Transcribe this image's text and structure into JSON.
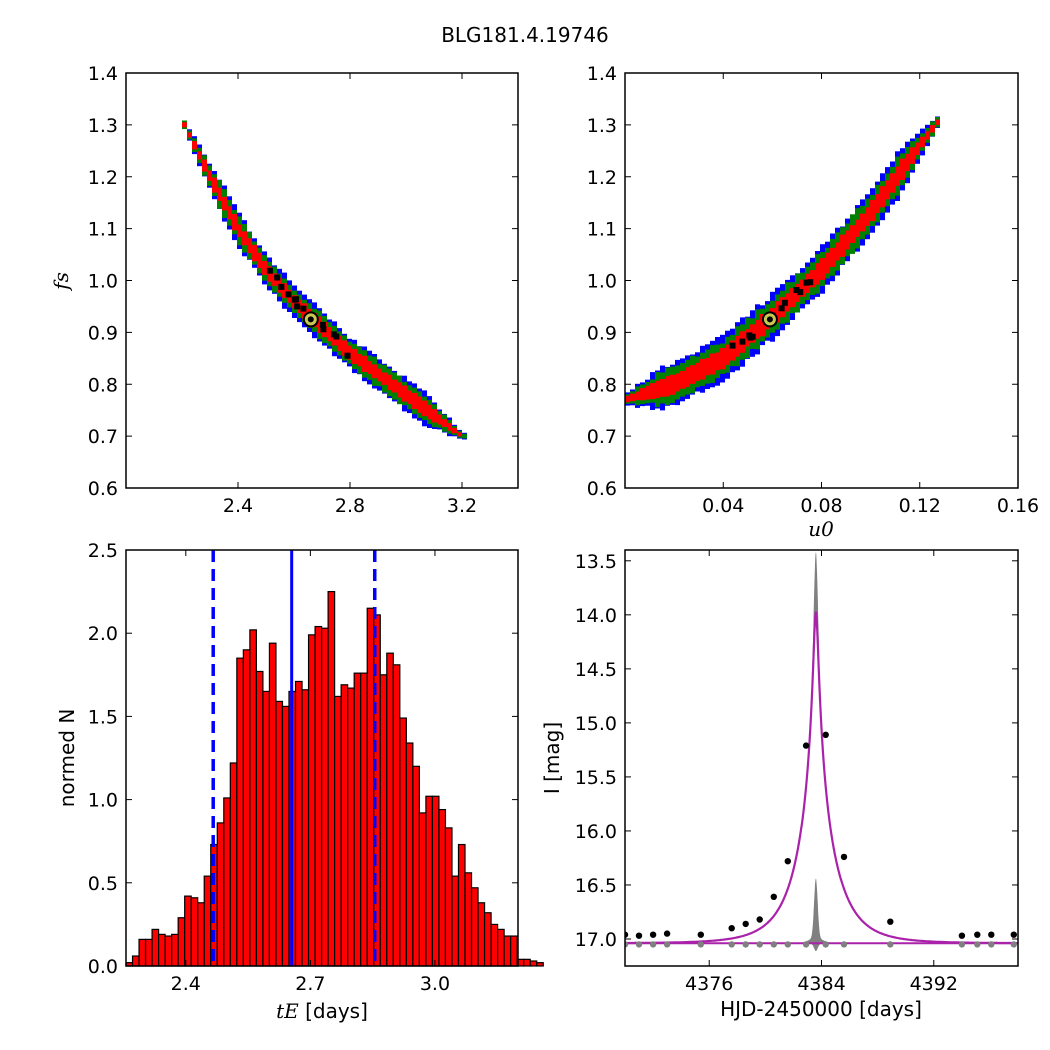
{
  "figure": {
    "title": "BLG181.4.19746"
  },
  "colors": {
    "sigma1": "#ff0000",
    "sigma2": "#008000",
    "sigma3": "#0000ff",
    "mcmc_best": "#000000",
    "best_fit_marker": "#c8c850",
    "hist_bar": "#ff0000",
    "hist_edge": "#000000",
    "median_line": "#0000ff",
    "model_curve": "#aa22aa",
    "residual": "#808080",
    "data_points": "#000000"
  },
  "chart_data": [
    {
      "id": "fs_vs_tE",
      "type": "heatmap",
      "title": "",
      "xlabel": "",
      "ylabel": "f_s",
      "ylabel_display": "fs",
      "xlim": [
        2.0,
        3.4
      ],
      "ylim": [
        0.6,
        1.4
      ],
      "xticks": [
        "2.4",
        "2.8",
        "3.2"
      ],
      "yticks": [
        "0.6",
        "0.7",
        "0.8",
        "0.9",
        "1.0",
        "1.1",
        "1.2",
        "1.3",
        "1.4"
      ],
      "band": [
        [
          2.2,
          1.31
        ],
        [
          2.3,
          1.2
        ],
        [
          2.4,
          1.1
        ],
        [
          2.5,
          1.02
        ],
        [
          2.6,
          0.96
        ],
        [
          2.7,
          0.91
        ],
        [
          2.8,
          0.86
        ],
        [
          2.9,
          0.82
        ],
        [
          3.0,
          0.78
        ],
        [
          3.1,
          0.74
        ],
        [
          3.2,
          0.7
        ]
      ],
      "best_fit": {
        "x": 2.66,
        "y": 0.925
      }
    },
    {
      "id": "fs_vs_u0",
      "type": "heatmap",
      "title": "",
      "xlabel": "u_0",
      "xlabel_display": "u0",
      "ylabel": "",
      "xlim": [
        0.0,
        0.16
      ],
      "ylim": [
        0.6,
        1.4
      ],
      "xticks": [
        "0.04",
        "0.08",
        "0.12",
        "0.16"
      ],
      "yticks": [
        "0.6",
        "0.7",
        "0.8",
        "0.9",
        "1.0",
        "1.1",
        "1.2",
        "1.3",
        "1.4"
      ],
      "band": [
        [
          0.0,
          0.77
        ],
        [
          0.02,
          0.8
        ],
        [
          0.04,
          0.85
        ],
        [
          0.06,
          0.93
        ],
        [
          0.08,
          1.02
        ],
        [
          0.1,
          1.13
        ],
        [
          0.12,
          1.26
        ],
        [
          0.128,
          1.31
        ]
      ],
      "best_fit": {
        "x": 0.059,
        "y": 0.925
      }
    },
    {
      "id": "tE_histogram",
      "type": "bar",
      "title": "",
      "xlabel": "t_E [days]",
      "xlabel_display_main": "tE",
      "xlabel_display_unit": " [days]",
      "ylabel": "normed N",
      "xlim": [
        2.256,
        3.2
      ],
      "ylim": [
        0.0,
        2.5
      ],
      "xticks": [
        "2.4",
        "2.7",
        "3.0"
      ],
      "yticks": [
        "0.0",
        "0.5",
        "1.0",
        "1.5",
        "2.0",
        "2.5"
      ],
      "bin_start": 2.256,
      "bin_width": 0.0157,
      "values": [
        0.02,
        0.06,
        0.16,
        0.16,
        0.22,
        0.19,
        0.18,
        0.19,
        0.29,
        0.42,
        0.41,
        0.38,
        0.54,
        0.73,
        0.86,
        1.01,
        1.22,
        1.85,
        1.9,
        2.02,
        1.77,
        1.65,
        1.94,
        1.59,
        1.56,
        1.65,
        1.71,
        1.66,
        1.99,
        2.04,
        2.03,
        2.25,
        1.62,
        1.69,
        1.67,
        1.76,
        1.76,
        2.15,
        2.11,
        1.75,
        1.88,
        1.81,
        1.49,
        1.34,
        1.2,
        0.92,
        1.02,
        1.02,
        0.94,
        0.83,
        0.54,
        0.73,
        0.56,
        0.47,
        0.38,
        0.32,
        0.25,
        0.22,
        0.18,
        0.18,
        0.04,
        0.04,
        0.03,
        0.02
      ],
      "median": 2.655,
      "interval": [
        2.466,
        2.855
      ]
    },
    {
      "id": "light_curve",
      "type": "line",
      "title": "",
      "xlabel": "HJD-2450000 [days]",
      "ylabel": "I [mag]",
      "xlim": [
        4370,
        4398
      ],
      "ylim": [
        17.25,
        13.4
      ],
      "xticks": [
        "4376",
        "4384",
        "4392"
      ],
      "yticks": [
        "13.5",
        "14.0",
        "14.5",
        "15.0",
        "15.5",
        "16.0",
        "16.5",
        "17.0"
      ],
      "model": {
        "t0": 4383.6,
        "tE": 2.66,
        "u0": 0.059,
        "baseline": 17.04,
        "peak": 13.97
      },
      "points": [
        {
          "t": 4370.0,
          "mag": 16.96
        },
        {
          "t": 4371.0,
          "mag": 16.97
        },
        {
          "t": 4372.0,
          "mag": 16.96
        },
        {
          "t": 4373.0,
          "mag": 16.95
        },
        {
          "t": 4375.4,
          "mag": 16.96
        },
        {
          "t": 4377.6,
          "mag": 16.9
        },
        {
          "t": 4378.6,
          "mag": 16.86
        },
        {
          "t": 4379.6,
          "mag": 16.82
        },
        {
          "t": 4380.6,
          "mag": 16.61
        },
        {
          "t": 4381.6,
          "mag": 16.28
        },
        {
          "t": 4382.9,
          "mag": 15.21
        },
        {
          "t": 4384.3,
          "mag": 15.11
        },
        {
          "t": 4385.6,
          "mag": 16.24
        },
        {
          "t": 4388.9,
          "mag": 16.84
        },
        {
          "t": 4394.0,
          "mag": 16.97
        },
        {
          "t": 4395.1,
          "mag": 16.96
        },
        {
          "t": 4396.1,
          "mag": 16.96
        },
        {
          "t": 4397.7,
          "mag": 16.96
        }
      ]
    }
  ]
}
